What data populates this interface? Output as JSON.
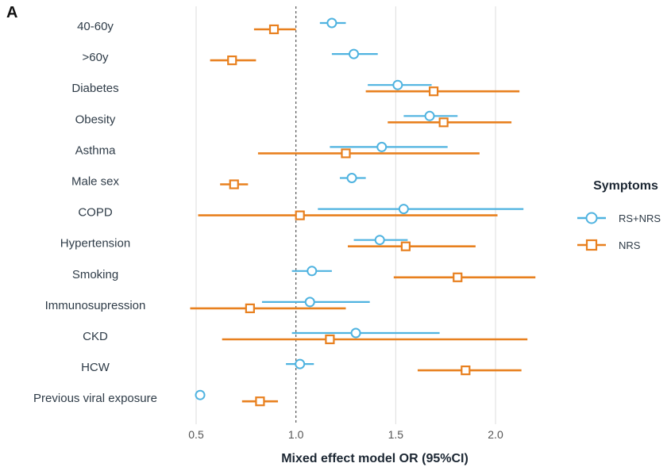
{
  "panel_label": "A",
  "chart_data": {
    "type": "scatter",
    "subtype": "forest-plot",
    "title": "",
    "xlabel": "Mixed effect model OR (95%CI)",
    "ylabel": "",
    "xlim": [
      0.45,
      2.2
    ],
    "xticks": [
      0.5,
      1.0,
      1.5,
      2.0
    ],
    "xtick_labels": [
      "0.5",
      "1.0",
      "1.5",
      "2.0"
    ],
    "reference_line": 1.0,
    "grid": "vertical major gridlines",
    "categories": [
      "40-60y",
      ">60y",
      "Diabetes",
      "Obesity",
      "Asthma",
      "Male sex",
      "COPD",
      "Hypertension",
      "Smoking",
      "Immunosupression",
      "CKD",
      "HCW",
      "Previous viral exposure"
    ],
    "series": [
      {
        "name": "RS+NRS",
        "color": "#4fb3e0",
        "marker": "circle",
        "or": [
          1.18,
          1.29,
          1.51,
          1.67,
          1.43,
          1.28,
          1.54,
          1.42,
          1.08,
          1.07,
          1.3,
          1.02,
          0.52
        ],
        "lower": [
          1.12,
          1.18,
          1.36,
          1.54,
          1.17,
          1.22,
          1.11,
          1.29,
          0.98,
          0.83,
          0.98,
          0.95,
          null
        ],
        "upper": [
          1.25,
          1.41,
          1.68,
          1.81,
          1.76,
          1.35,
          2.14,
          1.56,
          1.18,
          1.37,
          1.72,
          1.09,
          null
        ]
      },
      {
        "name": "NRS",
        "color": "#e8801f",
        "marker": "square",
        "or": [
          0.89,
          0.68,
          1.69,
          1.74,
          1.25,
          0.69,
          1.02,
          1.55,
          1.81,
          0.77,
          1.17,
          1.85,
          0.82
        ],
        "lower": [
          0.79,
          0.57,
          1.35,
          1.46,
          0.81,
          0.62,
          0.51,
          1.26,
          1.49,
          0.47,
          0.63,
          1.61,
          0.73
        ],
        "upper": [
          1.0,
          0.8,
          2.12,
          2.08,
          1.92,
          0.76,
          2.01,
          1.9,
          2.2,
          1.25,
          2.16,
          2.13,
          0.91
        ]
      }
    ],
    "legend": {
      "title": "Symptoms",
      "position": "right",
      "entries": [
        "RS+NRS",
        "NRS"
      ]
    }
  }
}
